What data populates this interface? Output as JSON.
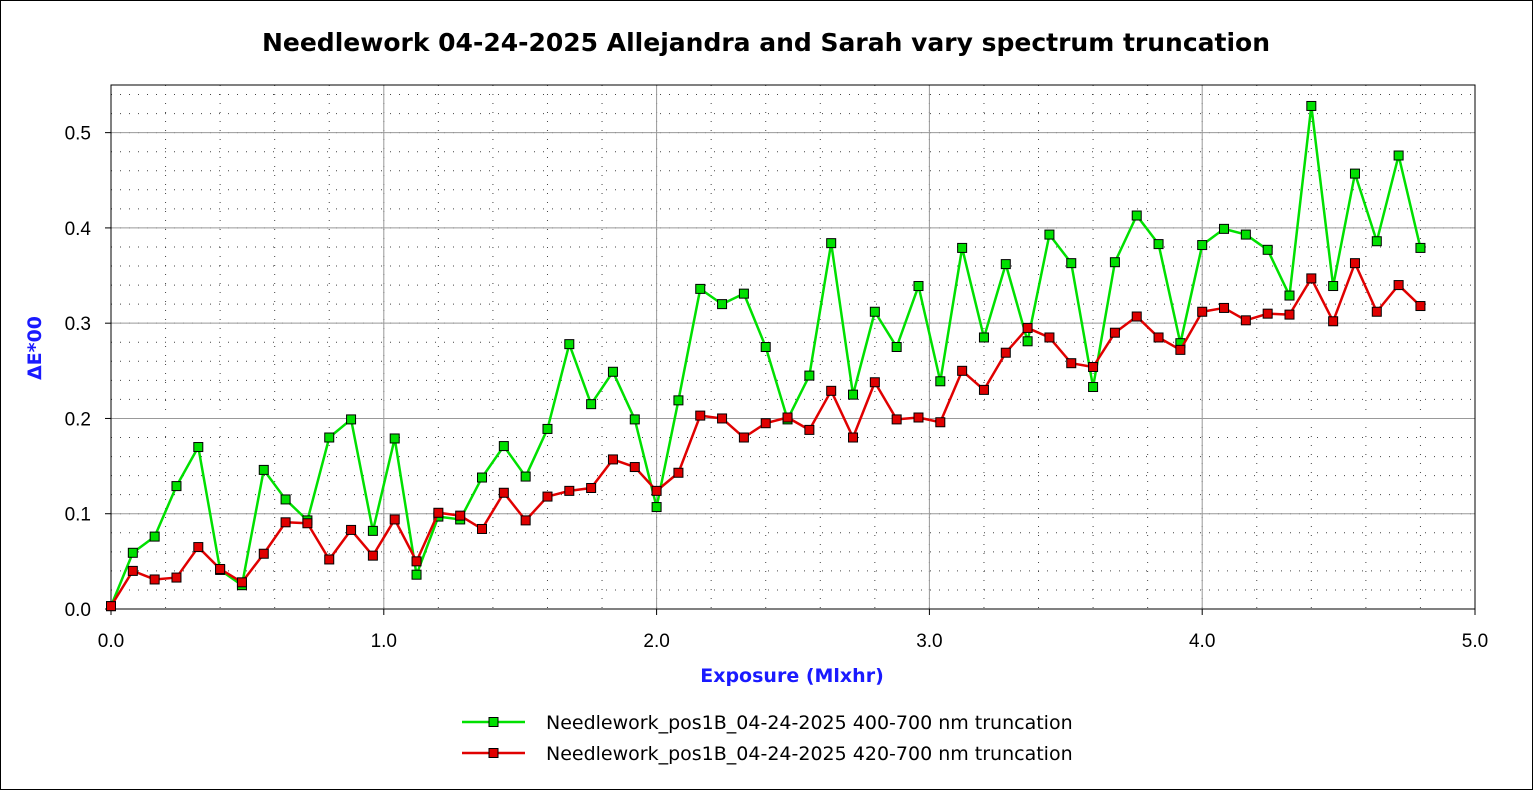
{
  "chart_data": {
    "type": "line",
    "title": "Needlework 04-24-2025 Allejandra and Sarah vary spectrum truncation",
    "xlabel": "Exposure (Mlxhr)",
    "ylabel": "ΔE*00",
    "xlim": [
      0,
      5
    ],
    "ylim": [
      0,
      0.55
    ],
    "x_ticks": [
      "0.0",
      "1.0",
      "2.0",
      "3.0",
      "4.0",
      "5.0"
    ],
    "y_ticks": [
      "0.0",
      "0.1",
      "0.2",
      "0.3",
      "0.4",
      "0.5"
    ],
    "grid": true,
    "legend_position": "bottom",
    "x": [
      0.0,
      0.08,
      0.16,
      0.24,
      0.32,
      0.4,
      0.48,
      0.56,
      0.64,
      0.72,
      0.8,
      0.88,
      0.96,
      1.04,
      1.12,
      1.2,
      1.28,
      1.36,
      1.44,
      1.52,
      1.6,
      1.68,
      1.76,
      1.84,
      1.92,
      2.0,
      2.08,
      2.16,
      2.24,
      2.32,
      2.4,
      2.48,
      2.56,
      2.64,
      2.72,
      2.8,
      2.88,
      2.96,
      3.04,
      3.12,
      3.2,
      3.28,
      3.36,
      3.44,
      3.52,
      3.6,
      3.68,
      3.76,
      3.84,
      3.92,
      4.0,
      4.08,
      4.16,
      4.24,
      4.32,
      4.4,
      4.48,
      4.56,
      4.64,
      4.72,
      4.8
    ],
    "series": [
      {
        "name": "Needlework_pos1B_04-24-2025 400-700 nm truncation",
        "color": "#00e000",
        "values": [
          0.003,
          0.059,
          0.076,
          0.129,
          0.17,
          0.041,
          0.025,
          0.146,
          0.115,
          0.093,
          0.18,
          0.199,
          0.082,
          0.179,
          0.036,
          0.097,
          0.094,
          0.138,
          0.171,
          0.139,
          0.189,
          0.278,
          0.215,
          0.249,
          0.199,
          0.107,
          0.219,
          0.336,
          0.32,
          0.331,
          0.275,
          0.199,
          0.245,
          0.384,
          0.225,
          0.312,
          0.275,
          0.339,
          0.239,
          0.379,
          0.285,
          0.362,
          0.281,
          0.393,
          0.363,
          0.233,
          0.364,
          0.413,
          0.383,
          0.279,
          0.382,
          0.399,
          0.393,
          0.377,
          0.329,
          0.528,
          0.339,
          0.457,
          0.386,
          0.476,
          0.379
        ]
      },
      {
        "name": "Needlework_pos1B_04-24-2025 420-700 nm truncation",
        "color": "#e00000",
        "values": [
          0.003,
          0.04,
          0.031,
          0.033,
          0.065,
          0.042,
          0.028,
          0.058,
          0.091,
          0.09,
          0.052,
          0.083,
          0.056,
          0.094,
          0.05,
          0.101,
          0.098,
          0.084,
          0.122,
          0.093,
          0.118,
          0.124,
          0.127,
          0.157,
          0.149,
          0.124,
          0.143,
          0.203,
          0.2,
          0.18,
          0.195,
          0.201,
          0.188,
          0.229,
          0.18,
          0.238,
          0.199,
          0.201,
          0.196,
          0.25,
          0.23,
          0.269,
          0.295,
          0.285,
          0.258,
          0.254,
          0.29,
          0.307,
          0.285,
          0.272,
          0.312,
          0.316,
          0.303,
          0.31,
          0.309,
          0.347,
          0.302,
          0.363,
          0.312,
          0.34,
          0.318
        ]
      }
    ]
  }
}
